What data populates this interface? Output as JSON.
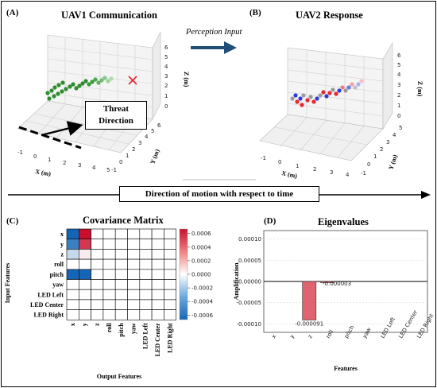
{
  "panels": {
    "a": {
      "label": "(A)",
      "title": "UAV1 Communication"
    },
    "b": {
      "label": "(B)",
      "title": "UAV2 Response"
    },
    "c": {
      "label": "(C)",
      "title": "Covariance Matrix"
    },
    "d": {
      "label": "(D)",
      "title": "Eigenvalues"
    }
  },
  "axes3d": {
    "x_label": "X (m)",
    "y_label": "Y (m)",
    "z_label": "Z (m)",
    "a_x_ticks": [
      "-1",
      "0",
      "1",
      "2",
      "3",
      "4",
      "5"
    ],
    "a_y_ticks": [
      "-1",
      "0",
      "1",
      "2",
      "3",
      "4",
      "5",
      "6"
    ],
    "a_z_ticks": [
      "0",
      "1",
      "2",
      "3",
      "4",
      "5",
      "6"
    ],
    "b_x_ticks": [
      "-1",
      "0",
      "1",
      "2",
      "3",
      "4"
    ],
    "b_y_ticks": [
      "-1",
      "0",
      "1",
      "2",
      "3",
      "4",
      "5"
    ],
    "b_z_ticks": [
      "0",
      "1",
      "2",
      "3",
      "4",
      "5",
      "6"
    ]
  },
  "annotations": {
    "perception_input": "Perception Input",
    "threat_line1": "Threat",
    "threat_line2": "Direction",
    "motion": "Direction of motion with respect to time"
  },
  "colors": {
    "uav1_points": "#2e8b2e",
    "threat_marker": "#e8222a",
    "uav2_red": "#e8262f",
    "uav2_blue": "#2a3cd6",
    "uav2_gray": "#9a9a9a",
    "arrow_blue": "#1f4e79",
    "eigen_bar": "#e06470"
  },
  "chart_data": [
    {
      "type": "heatmap",
      "title": "Covariance Matrix",
      "xlabel": "Output Features",
      "ylabel": "Input Features",
      "rows": [
        "x",
        "y",
        "z",
        "roll",
        "pitch",
        "yaw",
        "LED Left",
        "LED Center",
        "LED Right"
      ],
      "cols": [
        "x",
        "y",
        "z",
        "roll",
        "pitch",
        "yaw",
        "LED Left",
        "LED Center",
        "LED Right"
      ],
      "values": [
        [
          -0.0006,
          0.0006,
          0,
          0,
          0,
          0,
          0,
          0,
          0
        ],
        [
          -0.0005,
          0.0005,
          0,
          0,
          0,
          0,
          0,
          0,
          0
        ],
        [
          -0.00015,
          5e-05,
          0,
          0,
          0,
          0,
          0,
          0,
          0
        ],
        [
          0,
          0,
          0,
          0,
          0,
          0,
          0,
          0,
          0
        ],
        [
          -0.0006,
          -0.0006,
          0,
          0,
          0,
          0,
          0,
          0,
          0
        ],
        [
          0,
          0,
          0,
          0,
          0,
          0,
          0,
          0,
          0
        ],
        [
          0,
          0,
          0,
          0,
          0,
          0,
          0,
          0,
          0
        ],
        [
          0,
          0,
          0,
          0,
          0,
          0,
          0,
          0,
          0
        ],
        [
          0,
          0,
          0,
          0,
          0,
          0,
          0,
          0,
          0
        ]
      ],
      "colorbar_ticks": [
        "0.0006",
        "0.0004",
        "0.0002",
        "0.0000",
        "-0.0002",
        "-0.0004",
        "-0.0006"
      ],
      "vlim": [
        -0.0006,
        0.0006
      ]
    },
    {
      "type": "bar",
      "title": "Eigenvalues",
      "xlabel": "Features",
      "ylabel": "Amplification",
      "categories": [
        "x",
        "y",
        "z",
        "roll",
        "pitch",
        "yaw",
        "LED Left",
        "LED Center",
        "LED Right"
      ],
      "values": [
        0,
        0,
        -9.1e-05,
        -3e-06,
        0,
        0,
        0,
        0,
        0
      ],
      "data_labels": [
        "",
        "",
        "-0.000091",
        "-0.000003",
        "",
        "",
        "",
        "",
        ""
      ],
      "y_ticks": [
        "0.00010",
        "0.00005",
        "0.00000",
        "-0.00005",
        "-0.00010"
      ],
      "ylim": [
        -0.00012,
        0.00012
      ]
    }
  ]
}
